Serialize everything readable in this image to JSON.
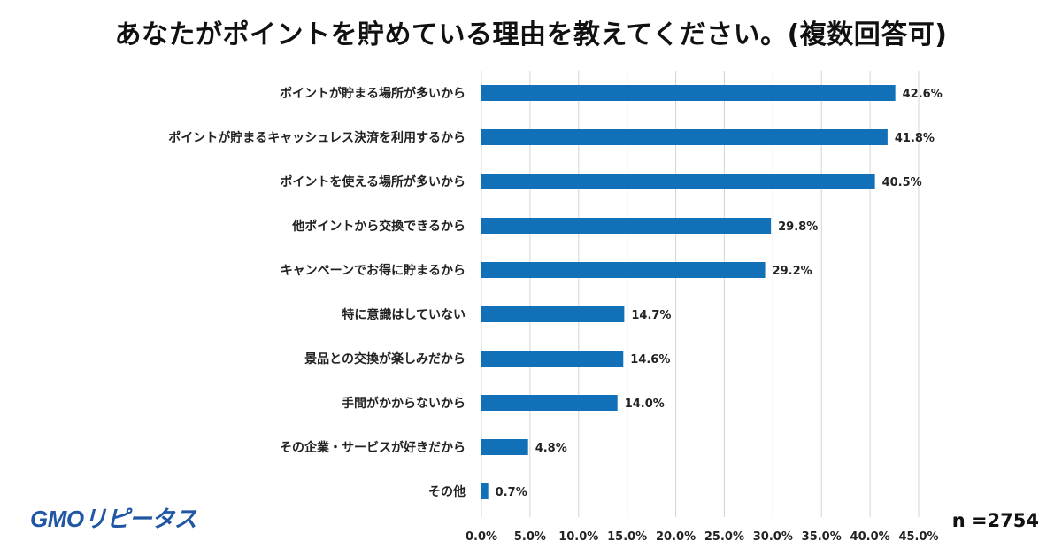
{
  "page": {
    "title": "あなたがポイントを貯めている理由を教えてください。(複数回答可)",
    "logo_text": "GMOリピータス",
    "sample_size": "n =2754"
  },
  "chart_data": {
    "type": "bar",
    "orientation": "horizontal",
    "title": "あなたがポイントを貯めている理由を教えてください。(複数回答可)",
    "categories": [
      "ポイントが貯まる場所が多いから",
      "ポイントが貯まるキャッシュレス決済を利用するから",
      "ポイントを使える場所が多いから",
      "他ポイントから交換できるから",
      "キャンペーンでお得に貯まるから",
      "特に意識はしていない",
      "景品との交換が楽しみだから",
      "手間がかからないから",
      "その企業・サービスが好きだから",
      "その他"
    ],
    "values": [
      42.6,
      41.8,
      40.5,
      29.8,
      29.2,
      14.7,
      14.6,
      14.0,
      4.8,
      0.7
    ],
    "value_labels": [
      "42.6%",
      "41.8%",
      "40.5%",
      "29.8%",
      "29.2%",
      "14.7%",
      "14.6%",
      "14.0%",
      "4.8%",
      "0.7%"
    ],
    "xlim": [
      0,
      45
    ],
    "xticks": [
      0,
      5,
      10,
      15,
      20,
      25,
      30,
      35,
      40,
      45
    ],
    "xtick_labels": [
      "0.0%",
      "5.0%",
      "10.0%",
      "15.0%",
      "20.0%",
      "25.0%",
      "30.0%",
      "35.0%",
      "40.0%",
      "45.0%"
    ],
    "grid": true,
    "bar_color": "#1170b8",
    "grid_color": "#d4d4d4",
    "xlabel": "",
    "ylabel": ""
  }
}
